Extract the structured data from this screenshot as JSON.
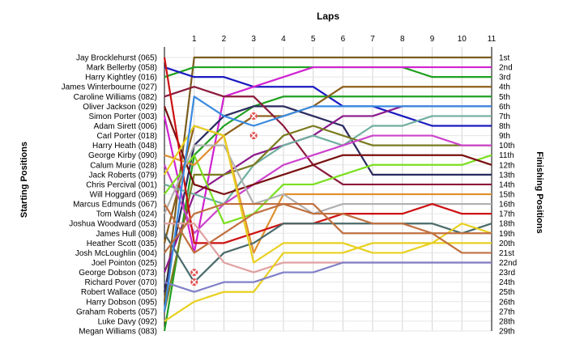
{
  "chart_data": {
    "type": "line",
    "title": "",
    "xlabel": "Laps",
    "ylabel_left": "Starting Positions",
    "ylabel_right": "Finishing Positions",
    "x": [
      0,
      1,
      2,
      3,
      4,
      5,
      6,
      7,
      8,
      9,
      10,
      11
    ],
    "xticks": [
      "1",
      "2",
      "3",
      "4",
      "5",
      "6",
      "7",
      "8",
      "9",
      "10",
      "11"
    ],
    "xlim": [
      0,
      11
    ],
    "ylim": [
      1,
      29
    ],
    "y_inverted": true,
    "grid": true,
    "legend": "none",
    "start_labels": [
      "Jay Brocklehurst (065)",
      "Mark Bellerby (058)",
      "Harry Kightley (016)",
      "James Winterbourne (027)",
      "Caroline Williams (082)",
      "Oliver Jackson (029)",
      "Simon Porter (003)",
      "Adam Sirett (006)",
      "Carl Porter (018)",
      "Harry Heath (048)",
      "George Kirby (090)",
      "Calum Murie (028)",
      "Jack Roberts (079)",
      "Chris Percival (001)",
      "Will Hoggard (069)",
      "Marcus Edmunds (067)",
      "Tom Walsh (024)",
      "Joshua Woodward (053)",
      "James Hull (008)",
      "Heather Scott (035)",
      "Josh McLoughlin (004)",
      "Joel Pointon (025)",
      "George Dobson (073)",
      "Richard Pover (070)",
      "Robert Wallace (050)",
      "Harry Dobson (095)",
      "Graham Roberts (057)",
      "Luke Davy (092)",
      "Megan Williams (083)"
    ],
    "finish_labels": [
      "1st",
      "2nd",
      "3rd",
      "4th",
      "5th",
      "6th",
      "7th",
      "8th",
      "9th",
      "10th",
      "11th",
      "12th",
      "13th",
      "14th",
      "15th",
      "16th",
      "17th",
      "18th",
      "19th",
      "20th",
      "21st",
      "22nd",
      "23rd",
      "24th",
      "25th",
      "26th",
      "27th",
      "28th",
      "29th"
    ],
    "series": [
      {
        "color": "#7A5C1E",
        "values": [
          26,
          1,
          1,
          1,
          1,
          1,
          1,
          1,
          1,
          1,
          1,
          1
        ]
      },
      {
        "color": "#20A020",
        "values": [
          3,
          2,
          2,
          2,
          2,
          2,
          2,
          2,
          2,
          3,
          3,
          3
        ]
      },
      {
        "color": "#1A1AC0",
        "values": [
          2,
          3,
          3,
          4,
          4,
          4,
          6,
          6,
          7,
          8,
          8,
          8
        ]
      },
      {
        "color": "#D022D0",
        "values": [
          7,
          21,
          5,
          4,
          3,
          2,
          2,
          2,
          2,
          2,
          2,
          2
        ]
      },
      {
        "color": "#20A020",
        "values": [
          29,
          11,
          8,
          6,
          5,
          5,
          5,
          5,
          5,
          5,
          5,
          5
        ]
      },
      {
        "color": "#8B5E1A",
        "values": [
          20,
          8,
          9,
          7,
          7,
          6,
          4,
          4,
          4,
          4,
          4,
          4
        ]
      },
      {
        "color": "#2A2A60",
        "values": [
          25,
          10,
          7,
          6,
          6,
          7,
          8,
          13,
          13,
          13,
          13,
          13
        ]
      },
      {
        "color": "#8B1A3A",
        "values": [
          5,
          4,
          5,
          5,
          8,
          12,
          14,
          14,
          14,
          14,
          14,
          14
        ]
      },
      {
        "color": "#8B1A8B",
        "values": [
          23,
          15,
          13,
          11,
          10,
          9,
          7,
          7,
          6,
          6,
          6,
          6
        ]
      },
      {
        "color": "#6FAF9F",
        "values": [
          14,
          15,
          16,
          12,
          10,
          9,
          10,
          8,
          8,
          7,
          7,
          7
        ]
      },
      {
        "color": "#7A7A20",
        "values": [
          27,
          13,
          13,
          12,
          9,
          8,
          9,
          10,
          10,
          10,
          10,
          10
        ]
      },
      {
        "color": "#CC44CC",
        "values": [
          12,
          19,
          16,
          14,
          12,
          11,
          10,
          9,
          9,
          9,
          10,
          10
        ]
      },
      {
        "color": "#7AE020",
        "values": [
          15,
          11,
          18,
          17,
          14,
          14,
          13,
          12,
          12,
          12,
          12,
          11
        ]
      },
      {
        "color": "#7A1010",
        "values": [
          6,
          14,
          15,
          14,
          13,
          12,
          11,
          11,
          11,
          11,
          11,
          12
        ]
      },
      {
        "color": "#E09030",
        "values": [
          11,
          12,
          9,
          21,
          15,
          15,
          15,
          15,
          15,
          15,
          15,
          15
        ]
      },
      {
        "color": "#B0B0B0",
        "values": [
          17,
          10,
          10,
          16,
          15,
          17,
          16,
          16,
          16,
          16,
          16,
          16
        ]
      },
      {
        "color": "#CC1010",
        "values": [
          1,
          20,
          20,
          19,
          18,
          18,
          17,
          17,
          17,
          16,
          17,
          17
        ]
      },
      {
        "color": "#4A6A6A",
        "values": [
          19,
          24,
          21,
          20,
          18,
          18,
          18,
          18,
          18,
          18,
          19,
          18
        ]
      },
      {
        "color": "#E8D020",
        "values": [
          13,
          8,
          9,
          22,
          20,
          20,
          20,
          21,
          21,
          20,
          18,
          19
        ]
      },
      {
        "color": "#C07040",
        "values": [
          16,
          21,
          19,
          17,
          16,
          16,
          19,
          19,
          19,
          19,
          19,
          19
        ]
      },
      {
        "color": "#E0A0A0",
        "values": [
          18,
          18,
          22,
          23,
          22,
          22,
          22,
          22,
          22,
          22,
          22,
          22
        ]
      },
      {
        "color": "#E8D020",
        "values": [
          28,
          26,
          25,
          25,
          21,
          21,
          21,
          20,
          20,
          20,
          20,
          20
        ]
      },
      {
        "color": "#8080C8",
        "values": [
          24,
          25,
          24,
          24,
          23,
          23,
          22,
          22,
          22,
          22,
          22,
          22
        ]
      },
      {
        "color": "#3A8AE0",
        "values": [
          27,
          5,
          7,
          8,
          7,
          6,
          6,
          6,
          6,
          6,
          6,
          6
        ]
      },
      {
        "color": "#C07040",
        "values": [
          21,
          17,
          16,
          16,
          16,
          17,
          17,
          18,
          18,
          19,
          21,
          21
        ]
      }
    ],
    "dnf_markers": [
      {
        "lap": 3,
        "position": 7
      },
      {
        "lap": 3,
        "position": 9
      },
      {
        "lap": 1,
        "position": 23
      },
      {
        "lap": 1,
        "position": 24
      }
    ]
  }
}
